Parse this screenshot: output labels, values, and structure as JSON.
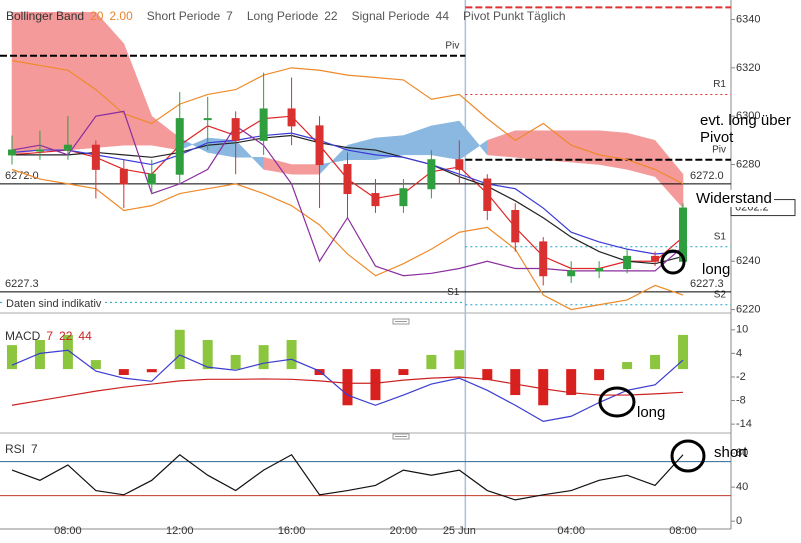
{
  "chart_data": [
    {
      "type": "candlestick",
      "legend": [
        {
          "name": "Bollinger Band",
          "params": [
            "20",
            "2.00"
          ],
          "param_color": "#e8862a"
        },
        {
          "name": "Short Periode",
          "params": [
            "7"
          ]
        },
        {
          "name": "Long Periode",
          "params": [
            "22"
          ]
        },
        {
          "name": "Signal Periode",
          "params": [
            "44"
          ]
        },
        {
          "name": "Pivot Punkt Täglich"
        }
      ],
      "open": [
        6284,
        6286,
        6286,
        6288,
        6278,
        6272,
        6276,
        6299,
        6299,
        6290,
        6303,
        6296,
        6280,
        6268,
        6263,
        6270,
        6282,
        6274,
        6261,
        6248,
        6234,
        6236,
        6237,
        6242,
        6240,
        null
      ],
      "high": [
        6292,
        6294,
        6300,
        6290,
        6282,
        6282,
        6310,
        6308,
        6302,
        6318,
        6316,
        6300,
        6285,
        6274,
        6274,
        6286,
        6290,
        6276,
        6264,
        6250,
        6240,
        6240,
        6245,
        6244,
        6264,
        null
      ],
      "low": [
        6280,
        6282,
        6282,
        6266,
        6262,
        6268,
        6272,
        6286,
        6276,
        6284,
        6288,
        6262,
        6258,
        6260,
        6260,
        6266,
        6272,
        6257,
        6244,
        6230,
        6231,
        6233,
        6235,
        6238,
        6238,
        null
      ],
      "close": [
        6286,
        6286,
        6288,
        6278,
        6272,
        6276,
        6299,
        6299,
        6290,
        6303,
        6296,
        6280,
        6268,
        6263,
        6270,
        6282,
        6278,
        6261,
        6248,
        6234,
        6236,
        6237,
        6242,
        6240,
        6262,
        null
      ],
      "up_color": "#2e9e3e",
      "down_color": "#d93030",
      "series": [
        {
          "color": "#ee8a2a",
          "values": [
            6323,
            6321,
            6319,
            6311,
            6301,
            6297,
            6305,
            6309,
            6311,
            6317,
            6320,
            6319,
            6317,
            6316,
            6315,
            6307,
            6309,
            6299,
            6290,
            6297,
            6288,
            6284,
            6282,
            6278,
            6272,
            null
          ]
        },
        {
          "color": "#ee8a2a",
          "values": [
            6278,
            6274,
            6272,
            6270,
            6261,
            6263,
            6268,
            6270,
            6272,
            6268,
            6263,
            6255,
            6243,
            6234,
            6239,
            6245,
            6252,
            6254,
            6245,
            6226,
            6220,
            6222,
            6224,
            6230,
            6226,
            null
          ]
        },
        {
          "color": "#e02424",
          "values": [
            6284,
            6285,
            6286,
            6283,
            6278,
            6276,
            6288,
            6296,
            6292,
            6299,
            6300,
            6288,
            6274,
            6266,
            6268,
            6277,
            6279,
            6268,
            6254,
            6242,
            6237,
            6237,
            6240,
            6240,
            6250,
            null
          ]
        },
        {
          "color": "#222222",
          "values": [
            6284,
            6284,
            6284,
            6285,
            6284,
            6283,
            6285,
            6288,
            6289,
            6291,
            6292,
            6289,
            6287,
            6286,
            6283,
            6280,
            6275,
            6271,
            6265,
            6258,
            6250,
            6244,
            6240,
            6239,
            6242,
            null
          ]
        },
        {
          "color": "#3a3ad8",
          "values": [
            6285,
            6286,
            6286,
            6284,
            6282,
            6280,
            6284,
            6289,
            6290,
            6292,
            6293,
            6290,
            6286,
            6284,
            6283,
            6280,
            6276,
            6272,
            6270,
            6262,
            6252,
            6248,
            6245,
            6243,
            6244,
            null
          ]
        },
        {
          "color": "#8a2e9e",
          "values": [
            6286,
            6288,
            6284,
            6300,
            6302,
            6268,
            6272,
            6278,
            6296,
            6288,
            6272,
            6240,
            6258,
            6238,
            6234,
            6235,
            6237,
            6240,
            6237,
            6237,
            6236,
            6236,
            6236,
            6236,
            6246,
            null
          ]
        }
      ],
      "cloud": {
        "a": [
          6284,
          6286,
          6286,
          6287,
          6288,
          6288,
          6286,
          6291,
          6290,
          6278,
          6276,
          6276,
          6288,
          6291,
          6292,
          6296,
          6298,
          6284,
          6283,
          6282,
          6281,
          6280,
          6278,
          6275,
          6262,
          null
        ],
        "b": [
          6343,
          6343,
          6343,
          6343,
          6330,
          6300,
          6291,
          6285,
          6283,
          6283,
          6280,
          6280,
          6282,
          6282,
          6284,
          6284,
          6282,
          6290,
          6294,
          6294,
          6294,
          6294,
          6293,
          6290,
          6276,
          null
        ],
        "a_color": "#8ab8e0",
        "b_color": "#f49a9a"
      },
      "levels": [
        {
          "value": 6325,
          "label": "Piv",
          "color": "#000000",
          "style": "dash",
          "side": "left"
        },
        {
          "value": 6223,
          "label": "S1",
          "color": "#1ea0c8",
          "style": "dot",
          "side": "left"
        },
        {
          "value": 6345,
          "color": "#e03030",
          "style": "dash",
          "side": "right"
        },
        {
          "value": 6309,
          "label": "R1",
          "color": "#e03030",
          "style": "dot",
          "side": "right"
        },
        {
          "value": 6282,
          "label": "Piv",
          "color": "#000000",
          "style": "dash",
          "side": "right"
        },
        {
          "value": 6246,
          "label": "S1",
          "color": "#1ea0c8",
          "style": "dot",
          "side": "right"
        },
        {
          "value": 6222,
          "label": "S2",
          "color": "#1ea0c8",
          "style": "dot",
          "side": "right"
        },
        {
          "value": 6272,
          "label": "6272.0",
          "color": "#000000",
          "style": "solid",
          "side": "both"
        },
        {
          "value": 6227.3,
          "label": "6227.3",
          "color": "#000000",
          "style": "solid",
          "side": "both"
        }
      ],
      "last_price": 6262.2,
      "note": "Daten sind indikativ",
      "annotations": [
        "evt. long über Pivot",
        "Widerstand",
        "long"
      ],
      "ylim": [
        6219,
        6346
      ],
      "yticks": [
        6220,
        6240,
        6260,
        6280,
        6300,
        6320,
        6340
      ],
      "separator_at": 16
    },
    {
      "type": "macd",
      "title": "MACD",
      "params": [
        "7",
        "22",
        "44"
      ],
      "param_color": "#cc2222",
      "values": [
        6.1,
        7.4,
        8.7,
        2.3,
        -1.5,
        -0.8,
        10,
        7.4,
        3.6,
        6.1,
        7.4,
        -1.5,
        -9.2,
        -7.9,
        -1.5,
        3.6,
        4.8,
        -2.8,
        -6.6,
        -9.2,
        -6.6,
        -2.8,
        1.8,
        3.6,
        8.7,
        null
      ],
      "pos_color": "#8cc63f",
      "neg_color": "#d8201e",
      "series": [
        {
          "color": "#3c3cd0",
          "values": [
            1.0,
            4.0,
            4.8,
            -0.5,
            -2.3,
            -3.1,
            3.6,
            0.5,
            -0.3,
            1.5,
            2.5,
            -0.5,
            -6.6,
            -9.2,
            -6.6,
            -3.8,
            -2.3,
            -5.4,
            -9.2,
            -13.3,
            -12.0,
            -8.5,
            -5.4,
            -4.0,
            2.3,
            null
          ]
        },
        {
          "color": "#cc2222",
          "values": [
            -9.2,
            -8.0,
            -6.8,
            -5.6,
            -4.6,
            -3.8,
            -3.0,
            -2.6,
            -2.6,
            -2.5,
            -2.6,
            -3.0,
            -3.6,
            -3.6,
            -2.8,
            -2.3,
            -2.0,
            -2.6,
            -3.8,
            -5.0,
            -6.0,
            -6.6,
            -6.6,
            -6.3,
            -5.9,
            null
          ]
        }
      ],
      "ylim": [
        -16,
        13
      ],
      "yticks": [
        10,
        4,
        -2,
        -8,
        -14
      ],
      "annotations": [
        "long"
      ]
    },
    {
      "type": "line",
      "title": "RSI",
      "params": [
        "7"
      ],
      "categories": [
        null,
        null,
        "08:00",
        null,
        null,
        null,
        "12:00",
        null,
        null,
        null,
        "16:00",
        null,
        null,
        null,
        "20:00",
        null,
        "25 Jun",
        null,
        null,
        null,
        "04:00",
        null,
        null,
        null,
        "08:00",
        null
      ],
      "series": [
        {
          "color": "#111111",
          "values": [
            60,
            48,
            66,
            36,
            31,
            48,
            78,
            54,
            36,
            60,
            78,
            31,
            36,
            42,
            60,
            54,
            60,
            36,
            25,
            31,
            36,
            48,
            54,
            42,
            78,
            null
          ]
        }
      ],
      "bands": [
        {
          "value": 70,
          "color": "#2c6a96"
        },
        {
          "value": 30,
          "color": "#c0392b"
        }
      ],
      "ylim": [
        -8,
        93
      ],
      "yticks": [
        0,
        40,
        80
      ],
      "annotations": [
        "short"
      ]
    }
  ]
}
